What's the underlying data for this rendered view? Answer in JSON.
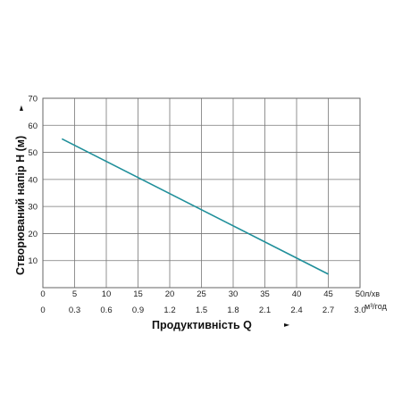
{
  "chart_data": {
    "type": "line",
    "title": "",
    "ylabel": "Створюваний напір H (м)",
    "xlabel": "Продуктивність  Q",
    "ylim": [
      0,
      70
    ],
    "y_ticks": [
      10,
      20,
      30,
      40,
      50,
      60,
      70
    ],
    "x_primary": {
      "unit": "л/хв",
      "range": [
        0,
        50
      ],
      "ticks": [
        0,
        5,
        10,
        15,
        20,
        25,
        30,
        35,
        40,
        45,
        50
      ]
    },
    "x_secondary": {
      "unit": "м³/год",
      "tick_labels": [
        "0",
        "0.3",
        "0.6",
        "0.9",
        "1.2",
        "1.5",
        "1.8",
        "2.1",
        "2.4",
        "2.7",
        "3.0"
      ]
    },
    "grid": true,
    "series": [
      {
        "x": [
          3,
          45
        ],
        "y": [
          55,
          5
        ]
      }
    ],
    "colors": {
      "line": "#1f8f9a",
      "grid": "#777777",
      "frame": "#666666"
    }
  }
}
